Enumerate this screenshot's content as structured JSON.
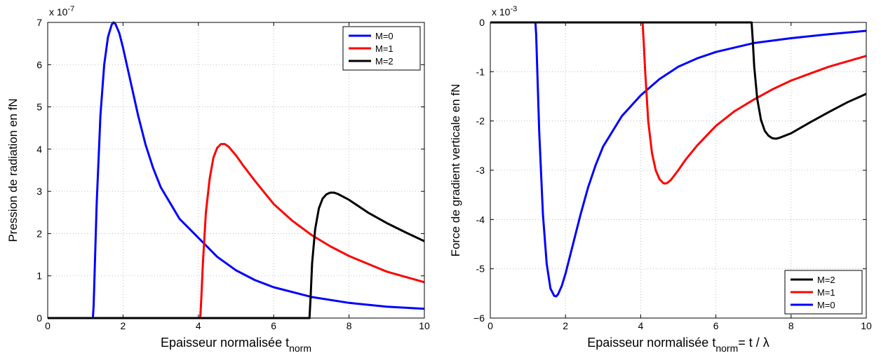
{
  "chart_data": [
    {
      "type": "line",
      "title": "",
      "xlabel": {
        "text": "Epaisseur normalisée t",
        "sub": "norm",
        "suffix": ""
      },
      "ylabel": "Pression de radiation en fN",
      "multiplier": {
        "base": "x 10",
        "exp": "-7"
      },
      "xlim": [
        0,
        10
      ],
      "ylim": [
        0,
        7
      ],
      "xticks": [
        0,
        2,
        4,
        6,
        8,
        10
      ],
      "yticks": [
        0,
        1,
        2,
        3,
        4,
        5,
        6,
        7
      ],
      "grid": true,
      "legend_position": "top-right",
      "legend": [
        "M=0",
        "M=1",
        "M=2"
      ],
      "series": [
        {
          "name": "M=0",
          "color": "#0000ff",
          "x": [
            0,
            1.2,
            1.22,
            1.3,
            1.4,
            1.5,
            1.6,
            1.7,
            1.75,
            1.8,
            1.9,
            2.0,
            2.2,
            2.4,
            2.6,
            2.8,
            3.0,
            3.5,
            4.0,
            4.5,
            5.0,
            5.5,
            6.0,
            7.0,
            8.0,
            9.0,
            10.0
          ],
          "y": [
            0,
            0,
            0.3,
            2.7,
            4.8,
            6.0,
            6.65,
            6.95,
            7.0,
            6.96,
            6.75,
            6.4,
            5.6,
            4.8,
            4.1,
            3.55,
            3.1,
            2.35,
            1.9,
            1.45,
            1.13,
            0.9,
            0.73,
            0.5,
            0.36,
            0.27,
            0.22
          ]
        },
        {
          "name": "M=1",
          "color": "#ff0000",
          "x": [
            0,
            4.05,
            4.08,
            4.12,
            4.2,
            4.3,
            4.4,
            4.5,
            4.6,
            4.7,
            4.8,
            5.0,
            5.2,
            5.5,
            6.0,
            6.5,
            7.0,
            7.5,
            8.0,
            9.0,
            10.0
          ],
          "y": [
            0,
            0,
            0.5,
            1.3,
            2.5,
            3.3,
            3.8,
            4.03,
            4.12,
            4.12,
            4.06,
            3.85,
            3.6,
            3.25,
            2.7,
            2.3,
            1.97,
            1.7,
            1.47,
            1.1,
            0.85
          ]
        },
        {
          "name": "M=2",
          "color": "#000000",
          "x": [
            0,
            6.95,
            6.98,
            7.02,
            7.1,
            7.2,
            7.3,
            7.4,
            7.5,
            7.6,
            7.7,
            8.0,
            8.5,
            9.0,
            9.5,
            10.0
          ],
          "y": [
            0,
            0,
            0.5,
            1.3,
            2.1,
            2.6,
            2.83,
            2.93,
            2.97,
            2.97,
            2.94,
            2.8,
            2.5,
            2.25,
            2.03,
            1.82
          ]
        }
      ]
    },
    {
      "type": "line",
      "title": "",
      "xlabel": {
        "text": "Epaisseur normalisée t",
        "sub": "norm",
        "suffix": "= t / λ"
      },
      "ylabel": "Force de gradient verticale en fN",
      "multiplier": {
        "base": "x 10",
        "exp": "-3"
      },
      "xlim": [
        0,
        10
      ],
      "ylim": [
        -6,
        0
      ],
      "xticks": [
        0,
        2,
        4,
        6,
        8,
        10
      ],
      "yticks": [
        0,
        -1,
        -2,
        -3,
        -4,
        -5,
        -6
      ],
      "ytick_labels": [
        "0",
        "-1",
        "-2",
        "-3",
        "-4",
        "-5",
        "−6"
      ],
      "grid": true,
      "legend_position": "bottom-right",
      "legend": [
        "M=2",
        "M=1",
        "M=0"
      ],
      "series": [
        {
          "name": "M=0",
          "color": "#0000ff",
          "x": [
            0,
            1.2,
            1.22,
            1.3,
            1.4,
            1.5,
            1.6,
            1.7,
            1.75,
            1.8,
            1.9,
            2.0,
            2.2,
            2.4,
            2.6,
            2.8,
            3.0,
            3.5,
            4.0,
            4.5,
            5.0,
            5.5,
            6.0,
            7.0,
            8.0,
            9.0,
            10.0
          ],
          "y": [
            0,
            0,
            -0.25,
            -2.2,
            -3.9,
            -4.9,
            -5.4,
            -5.55,
            -5.56,
            -5.52,
            -5.35,
            -5.1,
            -4.5,
            -3.9,
            -3.35,
            -2.9,
            -2.52,
            -1.9,
            -1.48,
            -1.15,
            -0.9,
            -0.73,
            -0.6,
            -0.42,
            -0.32,
            -0.24,
            -0.17
          ]
        },
        {
          "name": "M=1",
          "color": "#ff0000",
          "x": [
            0,
            4.05,
            4.08,
            4.12,
            4.2,
            4.3,
            4.4,
            4.5,
            4.6,
            4.65,
            4.7,
            4.8,
            5.0,
            5.2,
            5.5,
            6.0,
            6.5,
            7.0,
            7.5,
            8.0,
            9.0,
            10.0
          ],
          "y": [
            0,
            0,
            -0.4,
            -1.0,
            -2.0,
            -2.65,
            -3.0,
            -3.18,
            -3.26,
            -3.27,
            -3.26,
            -3.2,
            -3.0,
            -2.78,
            -2.5,
            -2.1,
            -1.8,
            -1.57,
            -1.36,
            -1.18,
            -0.9,
            -0.68
          ]
        },
        {
          "name": "M=2",
          "color": "#000000",
          "x": [
            0,
            6.95,
            6.98,
            7.02,
            7.1,
            7.2,
            7.3,
            7.4,
            7.5,
            7.6,
            7.7,
            8.0,
            8.5,
            9.0,
            9.5,
            10.0
          ],
          "y": [
            0,
            0,
            -0.35,
            -0.9,
            -1.55,
            -1.98,
            -2.2,
            -2.3,
            -2.35,
            -2.36,
            -2.34,
            -2.25,
            -2.03,
            -1.82,
            -1.62,
            -1.45
          ]
        }
      ]
    }
  ]
}
